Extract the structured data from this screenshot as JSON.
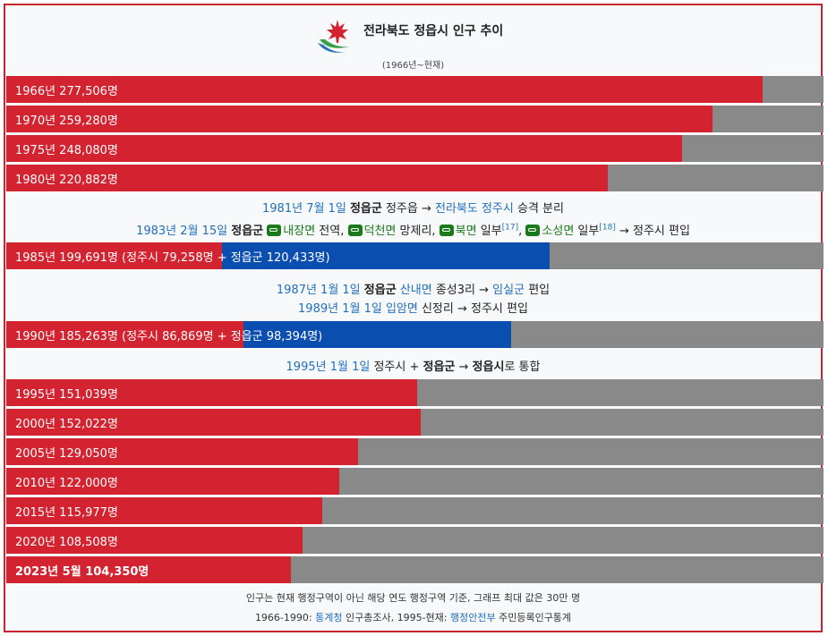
{
  "header": {
    "title": "전라북도 정읍시 인구 추이",
    "subtitle": "(1966년~현재)"
  },
  "bars": [
    {
      "label": "1966년 277,506명",
      "red_fraction": 0.925,
      "blue_fraction": 0,
      "bold": false
    },
    {
      "label": "1970년 259,280명",
      "red_fraction": 0.864,
      "blue_fraction": 0,
      "bold": false
    },
    {
      "label": "1975년 248,080명",
      "red_fraction": 0.827,
      "blue_fraction": 0,
      "bold": false
    },
    {
      "label": "1980년 220,882명",
      "red_fraction": 0.736,
      "blue_fraction": 0,
      "bold": false
    },
    {
      "label": "1985년 199,691명 (정주시 79,258명 + 정읍군 120,433명)",
      "red_fraction": 0.264,
      "blue_fraction": 0.401,
      "bold": false
    },
    {
      "label": "1990년 185,263명 (정주시 86,869명 + 정읍군 98,394명)",
      "red_fraction": 0.29,
      "blue_fraction": 0.328,
      "bold": false
    },
    {
      "label": "1995년 151,039명",
      "red_fraction": 0.503,
      "blue_fraction": 0,
      "bold": false
    },
    {
      "label": "2000년 152,022명",
      "red_fraction": 0.507,
      "blue_fraction": 0,
      "bold": false
    },
    {
      "label": "2005년 129,050명",
      "red_fraction": 0.43,
      "blue_fraction": 0,
      "bold": false
    },
    {
      "label": "2010년 122,000명",
      "red_fraction": 0.407,
      "blue_fraction": 0,
      "bold": false
    },
    {
      "label": "2015년 115,977명",
      "red_fraction": 0.387,
      "blue_fraction": 0,
      "bold": false
    },
    {
      "label": "2020년 108,508명",
      "red_fraction": 0.362,
      "blue_fraction": 0,
      "bold": false
    },
    {
      "label": "2023년 5월 104,350명",
      "red_fraction": 0.348,
      "blue_fraction": 0,
      "bold": true
    }
  ],
  "notes": {
    "n1981": {
      "date": "1981년 7월 1일",
      "subject": "정읍군",
      "text1": " 정주읍 → ",
      "link": "전라북도 정주시",
      "text2": " 승격 분리"
    },
    "n1983": {
      "date": "1983년 2월 15일",
      "subject": "정읍군",
      "t1": "내장면",
      "t1b": " 전역, ",
      "t2": "덕천면",
      "t2b": " 망제리, ",
      "t3": "북면",
      "t3b": " 일부",
      "ref1": "[17]",
      "sep": ", ",
      "t4": "소성면",
      "t4b": " 일부",
      "ref2": "[18]",
      "tail": " → 정주시 편입"
    },
    "n1987": {
      "date": "1987년 1월 1일",
      "subject": "정읍군",
      "link1": "산내면",
      "t1": " 종성3리 → ",
      "link2": "임실군",
      "t2": " 편입"
    },
    "n1989": {
      "date": "1989년 1월 1일",
      "link1": "입암면",
      "t1": " 신정리 → 정주시 편입"
    },
    "n1995": {
      "date": "1995년 1월 1일",
      "t1": " 정주시 + ",
      "b1": "정읍군",
      "t2": " → ",
      "b2": "정읍시",
      "t3": "로 통합"
    }
  },
  "footer": {
    "line1": "인구는 현재 행정구역이 아닌 해당 연도 행정구역 기준, 그래프 최대 값은 30만 명",
    "line2_pre": "1966-1990: ",
    "line2_link1": "통계청",
    "line2_mid": " 인구총조사, 1995-현재: ",
    "line2_link2": "행정안전부",
    "line2_post": " 주민등록인구통계"
  },
  "colors": {
    "red": "#d42330",
    "blue": "#0a4fb0",
    "gray": "#898989",
    "border": "#c8252f"
  }
}
